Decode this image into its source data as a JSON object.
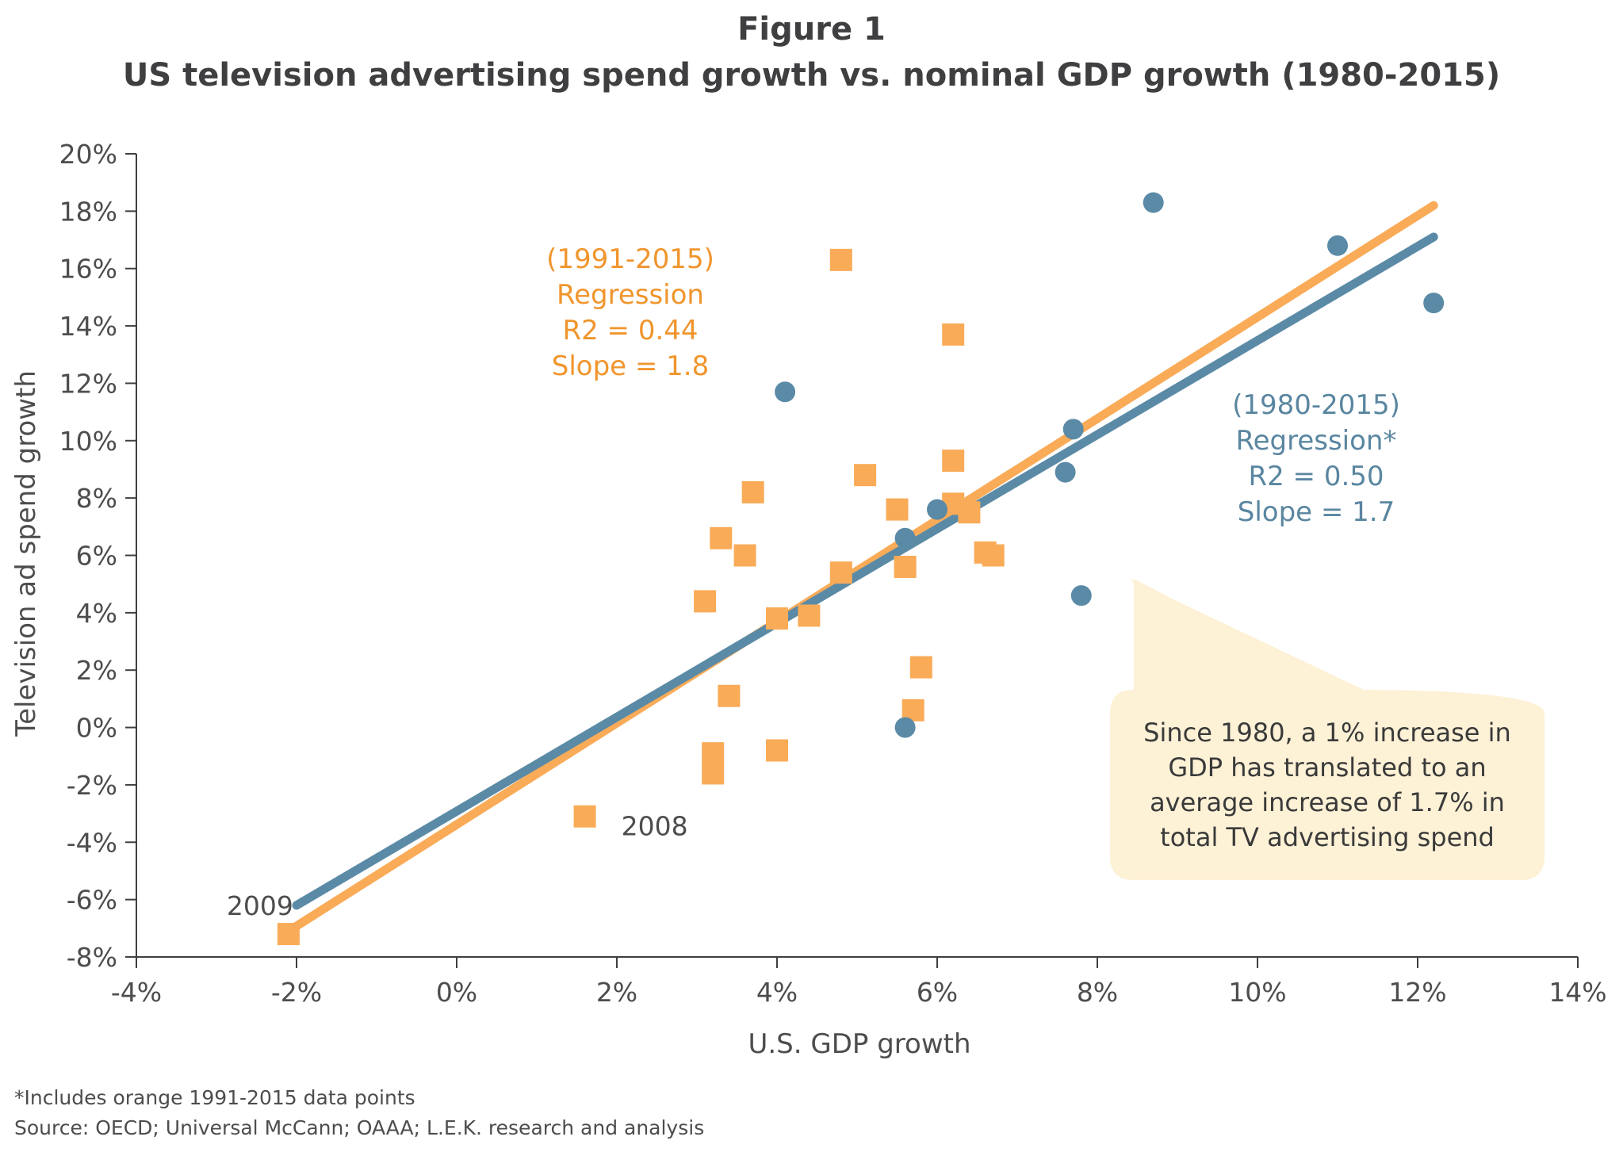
{
  "header": {
    "title": "Figure 1",
    "subtitle": "US television advertising spend growth vs. nominal GDP growth (1980-2015)"
  },
  "footnotes": {
    "note": "*Includes orange 1991-2015 data points",
    "source": "Source: OECD; Universal McCann; OAAA; L.E.K. research and analysis"
  },
  "callout": {
    "lines": [
      "Since 1980, a 1% increase in",
      "GDP has translated to an",
      "average increase of 1.7% in",
      "total TV advertising spend"
    ]
  },
  "colors": {
    "orange": "#f9ab58",
    "orange_text": "#f0952d",
    "blue": "#5a8aa6",
    "blue_text": "#5a86a0",
    "callout_bg": "#fdf1d6",
    "axis": "#3f3f41"
  },
  "chart_data": {
    "type": "scatter",
    "title": "US television advertising spend growth vs. nominal GDP growth (1980-2015)",
    "xlabel": "U.S. GDP growth",
    "ylabel": "Television ad spend growth",
    "xlim": [
      -0.04,
      0.14
    ],
    "ylim": [
      -0.08,
      0.2
    ],
    "x_ticks": [
      "-4%",
      "-2%",
      "0%",
      "2%",
      "4%",
      "6%",
      "8%",
      "10%",
      "12%",
      "14%"
    ],
    "y_ticks": [
      "-8%",
      "-6%",
      "-4%",
      "-2%",
      "0%",
      "2%",
      "4%",
      "6%",
      "8%",
      "10%",
      "12%",
      "14%",
      "16%",
      "18%",
      "20%"
    ],
    "grid": false,
    "series": [
      {
        "marker": "circle",
        "color": "#5a8aa6",
        "points": [
          {
            "x": 0.087,
            "y": 0.183
          },
          {
            "x": 0.11,
            "y": 0.168
          },
          {
            "x": 0.122,
            "y": 0.148
          },
          {
            "x": 0.041,
            "y": 0.117
          },
          {
            "x": 0.077,
            "y": 0.104
          },
          {
            "x": 0.076,
            "y": 0.089
          },
          {
            "x": 0.06,
            "y": 0.076
          },
          {
            "x": 0.056,
            "y": 0.066
          },
          {
            "x": 0.078,
            "y": 0.046
          },
          {
            "x": 0.056,
            "y": 0.0
          }
        ]
      },
      {
        "marker": "square",
        "color": "#f9ab58",
        "points": [
          {
            "x": 0.048,
            "y": 0.163
          },
          {
            "x": 0.062,
            "y": 0.137
          },
          {
            "x": 0.062,
            "y": 0.093
          },
          {
            "x": 0.051,
            "y": 0.088
          },
          {
            "x": 0.037,
            "y": 0.082
          },
          {
            "x": 0.055,
            "y": 0.076
          },
          {
            "x": 0.062,
            "y": 0.078
          },
          {
            "x": 0.064,
            "y": 0.075
          },
          {
            "x": 0.033,
            "y": 0.066
          },
          {
            "x": 0.066,
            "y": 0.061
          },
          {
            "x": 0.067,
            "y": 0.06
          },
          {
            "x": 0.036,
            "y": 0.06
          },
          {
            "x": 0.056,
            "y": 0.056
          },
          {
            "x": 0.048,
            "y": 0.054
          },
          {
            "x": 0.031,
            "y": 0.044
          },
          {
            "x": 0.044,
            "y": 0.039
          },
          {
            "x": 0.04,
            "y": 0.038
          },
          {
            "x": 0.058,
            "y": 0.021
          },
          {
            "x": 0.034,
            "y": 0.011
          },
          {
            "x": 0.057,
            "y": 0.006
          },
          {
            "x": 0.04,
            "y": -0.008
          },
          {
            "x": 0.032,
            "y": -0.009
          },
          {
            "x": 0.032,
            "y": -0.016
          },
          {
            "x": 0.016,
            "y": -0.031
          },
          {
            "x": -0.021,
            "y": -0.072
          }
        ]
      }
    ],
    "regressions": [
      {
        "label_lines": [
          "(1991-2015)",
          "Regression",
          "R2 = 0.44",
          "Slope = 1.8"
        ],
        "color": "#f9ab58",
        "line": [
          {
            "x": -0.021,
            "y": -0.071
          },
          {
            "x": 0.122,
            "y": 0.182
          }
        ]
      },
      {
        "label_lines": [
          "(1980-2015)",
          "Regression*",
          "R2 = 0.50",
          "Slope = 1.7"
        ],
        "color": "#5a8aa6",
        "line": [
          {
            "x": -0.02,
            "y": -0.062
          },
          {
            "x": 0.122,
            "y": 0.171
          }
        ]
      }
    ],
    "point_labels": [
      {
        "text": "2008",
        "x": 0.016,
        "y": -0.031
      },
      {
        "text": "2009",
        "x": -0.021,
        "y": -0.072
      }
    ]
  }
}
